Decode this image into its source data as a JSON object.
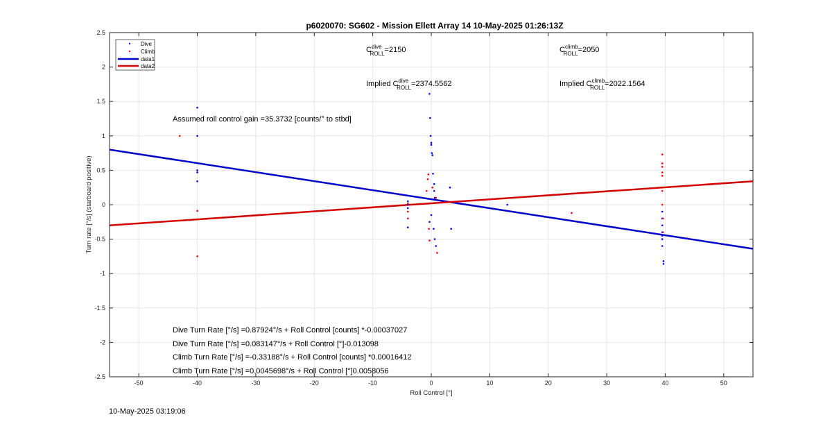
{
  "chart_data": {
    "type": "scatter",
    "title": "p6020070: SG602 - Mission Ellett Array 14 10-May-2025 01:26:13Z",
    "xlabel": "Roll Control [°]",
    "ylabel": "Turn rate [°/s] (starboard positive)",
    "xlim": [
      -55,
      55
    ],
    "ylim": [
      -2.5,
      2.5
    ],
    "xticks": [
      -50,
      -40,
      -30,
      -20,
      -10,
      0,
      10,
      20,
      30,
      40,
      50
    ],
    "yticks": [
      -2.5,
      -2,
      -1.5,
      -1,
      -0.5,
      0,
      0.5,
      1,
      1.5,
      2,
      2.5
    ],
    "grid": true,
    "legend_position": "top-left",
    "series": [
      {
        "name": "Dive",
        "kind": "points",
        "color": "#0000ff",
        "x": [
          -40,
          -40,
          -40,
          -40,
          -40,
          -4,
          -4,
          -4,
          -4,
          -0.3,
          -0.2,
          -0.1,
          0,
          0,
          0.1,
          0.2,
          0.3,
          0.5,
          0.5,
          0.6,
          0,
          -0.3,
          0.4,
          0.6,
          0.8,
          3.2,
          3.4,
          13,
          39.5,
          39.5,
          39.5,
          39.5,
          39.5,
          39.5,
          39.5,
          39.7,
          39.7
        ],
        "y": [
          1.41,
          1.0,
          0.5,
          0.47,
          0.34,
          0.05,
          0.0,
          -0.05,
          -0.33,
          1.61,
          1.26,
          1.0,
          0.9,
          0.87,
          0.75,
          0.72,
          0.45,
          0.3,
          0.2,
          0.1,
          -0.15,
          -0.25,
          -0.35,
          -0.5,
          -0.6,
          0.25,
          -0.35,
          0.0,
          -0.1,
          -0.2,
          -0.3,
          -0.4,
          -0.45,
          -0.5,
          -0.6,
          -0.82,
          -0.86
        ]
      },
      {
        "name": "Climb",
        "kind": "points",
        "color": "#ff0000",
        "x": [
          -43,
          -40,
          -40,
          -4,
          -4,
          -4,
          -0.8,
          -0.6,
          -0.5,
          -0.4,
          -0.3,
          0.2,
          0.8,
          1.0,
          24,
          39.5,
          39.5,
          39.5,
          39.5,
          39.5,
          39.5,
          39.5,
          39.6,
          39.6
        ],
        "y": [
          1.0,
          -0.09,
          -0.75,
          0.02,
          -0.1,
          -0.2,
          0.2,
          0.37,
          0.44,
          -0.35,
          -0.52,
          0.25,
          0.1,
          -0.7,
          -0.12,
          0.73,
          0.6,
          0.55,
          0.47,
          0.42,
          0.2,
          0.0,
          -0.2,
          -0.4
        ]
      },
      {
        "name": "data1",
        "kind": "line",
        "color": "#0000c8",
        "x": [
          -55,
          55
        ],
        "y": [
          0.8,
          -0.64
        ]
      },
      {
        "name": "data2",
        "kind": "line",
        "color": "#d40000",
        "x": [
          -55,
          55
        ],
        "y": [
          -0.3,
          0.34
        ]
      }
    ],
    "annotations": {
      "c_dive": {
        "C": "C",
        "sup": "dive",
        "sub": "ROLL",
        "value": "=2150"
      },
      "c_climb": {
        "C": "C",
        "sup": "climb",
        "sub": "ROLL",
        "value": "=2050"
      },
      "implied_dive": {
        "prefix": "Implied C",
        "sup": "dive",
        "sub": "ROLL",
        "value": "=2374.5562"
      },
      "implied_climb": {
        "prefix": "Implied C",
        "sup": "climb",
        "sub": "ROLL",
        "value": "=2022.1564"
      },
      "gain": "Assumed roll control gain =35.3732 [counts/° to stbd]",
      "eq1": "Dive Turn Rate [°/s] =0.87924°/s + Roll Control [counts] *-0.00037027",
      "eq2": "Dive Turn Rate [°/s] =0.083147°/s + Roll Control [°]-0.013098",
      "eq3": "Climb Turn Rate [°/s] =-0.33188°/s + Roll Control [counts] *0.00016412",
      "eq4": "Climb Turn Rate [°/s] =0.0045698°/s + Roll Control [°]0.0058056"
    }
  },
  "footer": {
    "timestamp": "10-May-2025 03:19:06"
  }
}
